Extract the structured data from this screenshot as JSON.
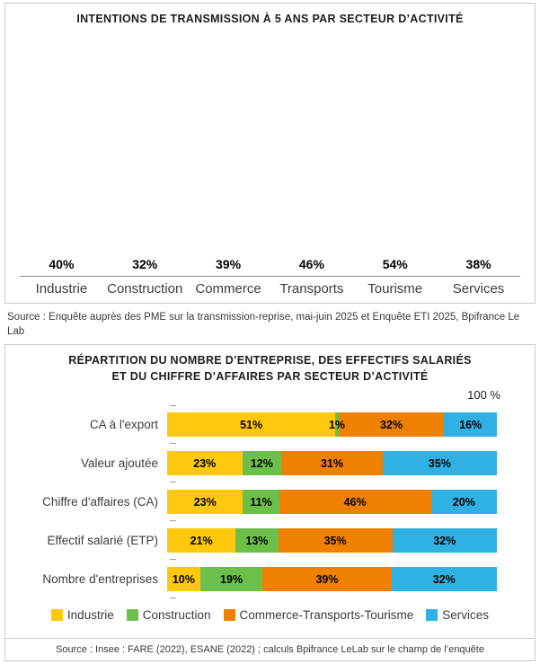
{
  "colors": {
    "industrie_yellow": "#FFC80C",
    "construction_green": "#6CC04A",
    "commerce_orange": "#F08100",
    "services_blue": "#2FB1E3",
    "panel_border": "#C9C9C9"
  },
  "panel1": {
    "title": "INTENTIONS DE TRANSMISSION À 5 ANS PAR SECTEUR D’ACTIVITÉ",
    "source": "Source : Enquête auprès des PME sur la transmission-reprise, mai-juin 2025 et Enquête ETI 2025, Bpifrance Le Lab"
  },
  "panel2": {
    "title": "RÉPARTITION DU NOMBRE D’ENTREPRISE, DES EFFECTIFS SALARIÉS\nET DU CHIFFRE D’AFFAIRES PAR SECTEUR D’ACTIVITÉ",
    "axis_max_label": "100 %",
    "source": "Source : Insee : FARE (2022), ESANE (2022) ; calculs Bpifrance LeLab sur le champ de l’enquête"
  },
  "chart_data": [
    {
      "type": "bar",
      "title": "INTENTIONS DE TRANSMISSION À 5 ANS PAR SECTEUR D’ACTIVITÉ",
      "categories": [
        "Industrie",
        "Construction",
        "Commerce",
        "Transports",
        "Tourisme",
        "Services"
      ],
      "values": [
        40,
        32,
        39,
        46,
        54,
        38
      ],
      "value_suffix": "%",
      "ylim": [
        0,
        60
      ],
      "bar_color": "#FFC80C",
      "grid": false,
      "legend": false
    },
    {
      "type": "bar",
      "orientation": "horizontal_stacked",
      "title": "RÉPARTITION DU NOMBRE D’ENTREPRISE, DES EFFECTIFS SALARIÉS ET DU CHIFFRE D’AFFAIRES PAR SECTEUR D’ACTIVITÉ",
      "categories": [
        "CA à l'export",
        "Valeur ajoutée",
        "Chiffre d'affaires (CA)",
        "Effectif salarié (ETP)",
        "Nombre d'entreprises"
      ],
      "series": [
        {
          "name": "Industrie",
          "color": "#FFC80C",
          "values": [
            51,
            23,
            23,
            21,
            10
          ]
        },
        {
          "name": "Construction",
          "color": "#6CC04A",
          "values": [
            1,
            12,
            11,
            13,
            19
          ]
        },
        {
          "name": "Commerce-Transports-Tourisme",
          "color": "#F08100",
          "values": [
            32,
            31,
            46,
            35,
            39
          ]
        },
        {
          "name": "Services",
          "color": "#2FB1E3",
          "values": [
            16,
            35,
            20,
            32,
            32
          ]
        }
      ],
      "value_suffix": "%",
      "xlim": [
        0,
        100
      ],
      "axis_max_label": "100 %",
      "legend_position": "bottom"
    }
  ]
}
